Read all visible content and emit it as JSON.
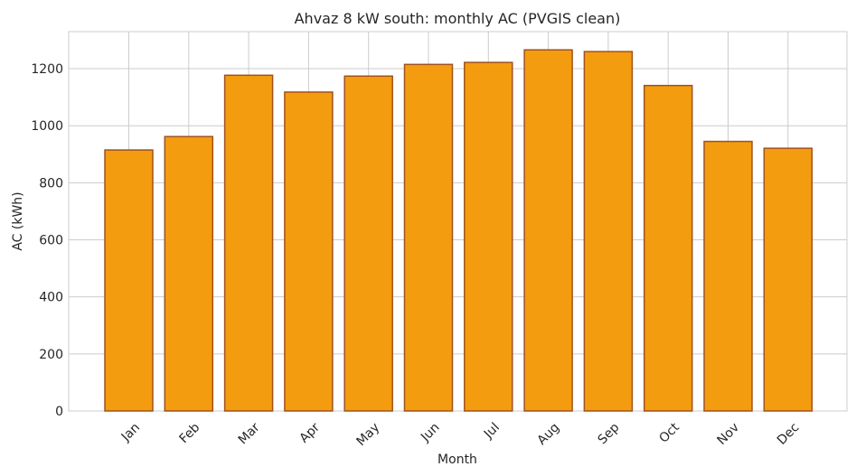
{
  "chart_data": {
    "type": "bar",
    "title": "Ahvaz 8 kW south: monthly AC (PVGIS clean)",
    "xlabel": "Month",
    "ylabel": "AC (kWh)",
    "categories": [
      "Jan",
      "Feb",
      "Mar",
      "Apr",
      "May",
      "Jun",
      "Jul",
      "Aug",
      "Sep",
      "Oct",
      "Nov",
      "Dec"
    ],
    "values": [
      915,
      962,
      1177,
      1118,
      1174,
      1215,
      1222,
      1266,
      1260,
      1141,
      945,
      921
    ],
    "ylim": [
      0,
      1330
    ],
    "yticks": [
      0,
      200,
      400,
      600,
      800,
      1000,
      1200
    ],
    "grid": true,
    "legend": "none",
    "colors": {
      "bar_fill": "#f39c0f",
      "bar_edge": "#a0521e",
      "grid": "#cccccc",
      "text": "#262626"
    }
  }
}
